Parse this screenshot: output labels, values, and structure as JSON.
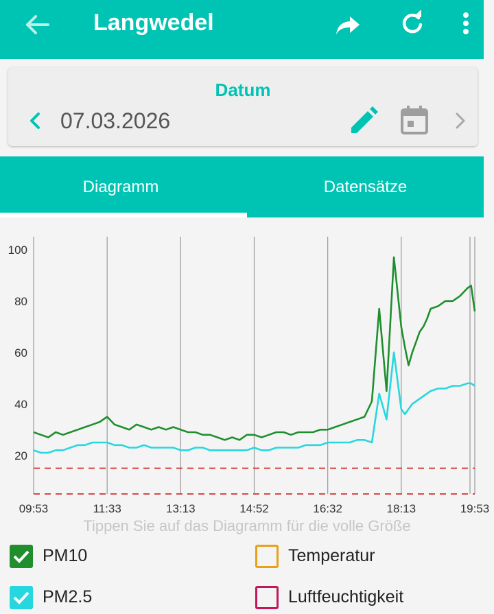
{
  "app_bar": {
    "title": "Langwedel",
    "icons": [
      "arrow-back-icon",
      "share-icon",
      "refresh-icon",
      "more-vert-icon"
    ]
  },
  "date_card": {
    "label": "Datum",
    "date": "07.03.2026",
    "icons": [
      "chevron-left-icon",
      "pencil-icon",
      "calendar-icon",
      "chevron-right-icon"
    ]
  },
  "tabs": [
    {
      "label": "Diagramm",
      "selected": true
    },
    {
      "label": "Datensätze",
      "selected": false
    }
  ],
  "chart_hint": "Tippen Sie auf das Diagramm für die volle Größe",
  "legend": [
    {
      "label": "PM10",
      "checked": true,
      "color": "#1f8f2e"
    },
    {
      "label": "Temperatur",
      "checked": false,
      "color": "#e8a01b"
    },
    {
      "label": "PM2.5",
      "checked": true,
      "color": "#26d7e0"
    },
    {
      "label": "Luftfeuchtigkeit",
      "checked": false,
      "color": "#c2185b"
    }
  ],
  "colors": {
    "accent": "#00c4b3",
    "pm10": "#1f8f2e",
    "pm25": "#26d7e0",
    "limit_line": "#d32f2f"
  },
  "chart_data": {
    "type": "line",
    "x_tick_labels": [
      "09:53",
      "11:33",
      "13:13",
      "14:52",
      "16:32",
      "18:13",
      "19:53"
    ],
    "y_ticks": [
      20,
      40,
      60,
      80,
      100
    ],
    "ylim": [
      5,
      105
    ],
    "xlim_minutes": [
      593,
      1193
    ],
    "grid": "vertical",
    "threshold_lines": [
      15,
      5
    ],
    "series": [
      {
        "name": "PM10",
        "color": "#1f8f2e",
        "x_minutes": [
          593,
          603,
          613,
          623,
          633,
          643,
          653,
          663,
          673,
          683,
          693,
          703,
          713,
          723,
          733,
          743,
          753,
          763,
          773,
          783,
          793,
          803,
          813,
          823,
          833,
          843,
          853,
          863,
          873,
          883,
          893,
          903,
          913,
          923,
          933,
          943,
          953,
          963,
          973,
          983,
          993,
          1003,
          1013,
          1023,
          1033,
          1043,
          1053,
          1063,
          1073,
          1083,
          1093,
          1098,
          1103,
          1108,
          1113,
          1118,
          1123,
          1128,
          1133,
          1143,
          1153,
          1163,
          1173,
          1183,
          1188,
          1193
        ],
        "values": [
          29,
          28,
          27,
          29,
          28,
          29,
          30,
          31,
          32,
          33,
          35,
          32,
          31,
          30,
          32,
          31,
          30,
          31,
          30,
          31,
          30,
          29,
          29,
          28,
          28,
          27,
          26,
          27,
          26,
          28,
          28,
          27,
          28,
          29,
          29,
          28,
          29,
          29,
          29,
          30,
          30,
          31,
          32,
          33,
          34,
          35,
          41,
          77,
          45,
          97,
          70,
          62,
          55,
          60,
          64,
          68,
          70,
          73,
          77,
          78,
          80,
          80,
          82,
          85,
          86,
          76
        ]
      },
      {
        "name": "PM2.5",
        "color": "#26d7e0",
        "x_minutes": [
          593,
          603,
          613,
          623,
          633,
          643,
          653,
          663,
          673,
          683,
          693,
          703,
          713,
          723,
          733,
          743,
          753,
          763,
          773,
          783,
          793,
          803,
          813,
          823,
          833,
          843,
          853,
          863,
          873,
          883,
          893,
          903,
          913,
          923,
          933,
          943,
          953,
          963,
          973,
          983,
          993,
          1003,
          1013,
          1023,
          1033,
          1043,
          1053,
          1063,
          1073,
          1083,
          1093,
          1098,
          1103,
          1108,
          1113,
          1118,
          1123,
          1128,
          1133,
          1143,
          1153,
          1163,
          1173,
          1183,
          1188,
          1193
        ],
        "values": [
          22,
          21,
          21,
          22,
          22,
          23,
          24,
          24,
          25,
          25,
          25,
          24,
          24,
          23,
          23,
          24,
          23,
          23,
          23,
          23,
          22,
          22,
          23,
          23,
          22,
          22,
          22,
          22,
          22,
          22,
          23,
          22,
          22,
          23,
          23,
          23,
          23,
          24,
          24,
          24,
          25,
          25,
          25,
          25,
          26,
          26,
          25,
          44,
          34,
          60,
          38,
          36,
          38,
          40,
          41,
          42,
          43,
          44,
          45,
          46,
          46,
          47,
          47,
          48,
          48,
          47
        ]
      }
    ]
  }
}
